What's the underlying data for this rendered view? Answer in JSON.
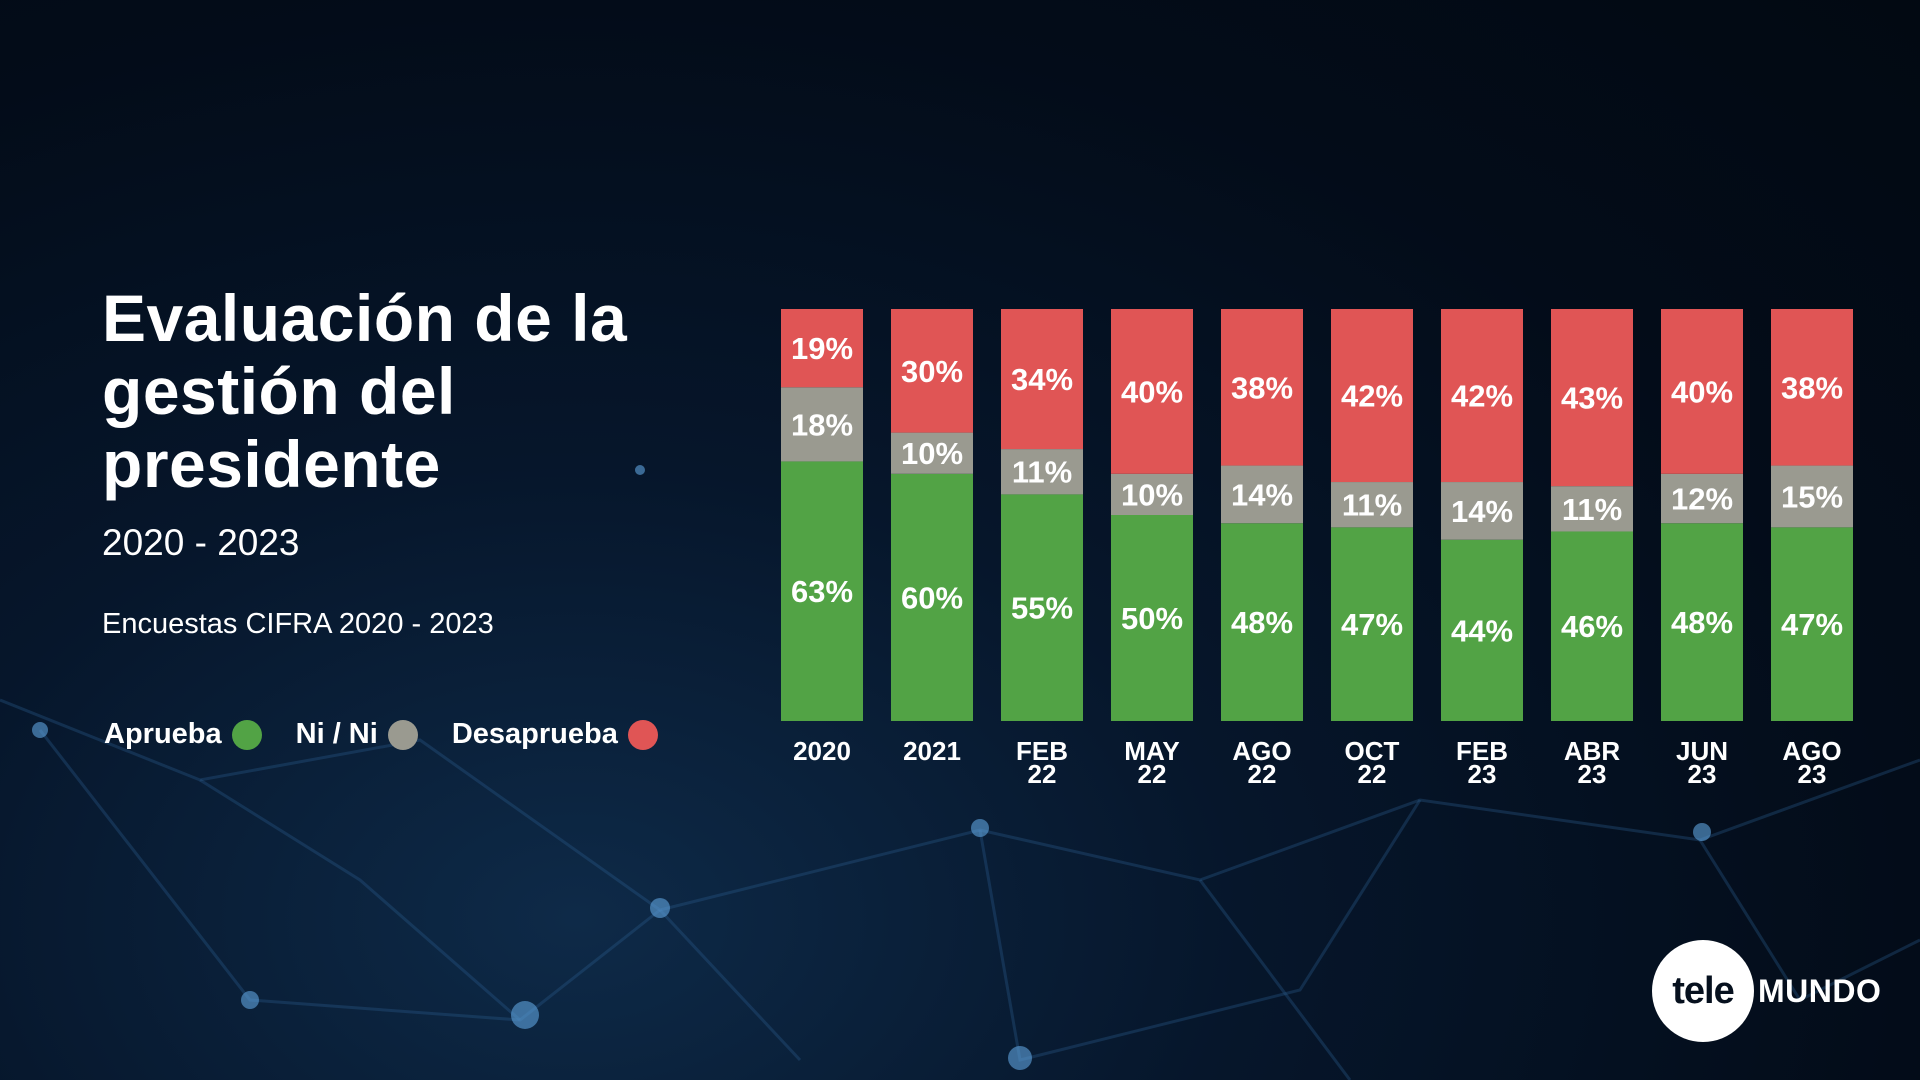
{
  "title": "Evaluación de la gestión del presidente",
  "title_lines": [
    "Evaluación de la",
    "gestión del",
    "presidente"
  ],
  "subtitle": "2020 - 2023",
  "source": "Encuestas CIFRA 2020 - 2023",
  "legend": [
    {
      "label": "Aprueba",
      "color": "#52A345"
    },
    {
      "label": "Ni / Ni",
      "color": "#9A9A90"
    },
    {
      "label": "Desaprueba",
      "color": "#E05555"
    }
  ],
  "logo": {
    "circle_text": "tele",
    "word": "MUNDO"
  },
  "chart_data": {
    "type": "bar",
    "stacked": true,
    "title": "Evaluación de la gestión del presidente",
    "xlabel": "",
    "ylabel": "",
    "ylim": [
      0,
      100
    ],
    "categories": [
      "2020",
      "2021",
      "FEB 22",
      "MAY 22",
      "AGO 22",
      "OCT 22",
      "FEB 23",
      "ABR 23",
      "JUN 23",
      "AGO 23"
    ],
    "category_lines": [
      [
        "2020"
      ],
      [
        "2021"
      ],
      [
        "FEB",
        "22"
      ],
      [
        "MAY",
        "22"
      ],
      [
        "AGO",
        "22"
      ],
      [
        "OCT",
        "22"
      ],
      [
        "FEB",
        "23"
      ],
      [
        "ABR",
        "23"
      ],
      [
        "JUN",
        "23"
      ],
      [
        "AGO",
        "23"
      ]
    ],
    "series": [
      {
        "name": "Aprueba",
        "color": "#52A345",
        "values": [
          63,
          60,
          55,
          50,
          48,
          47,
          44,
          46,
          48,
          47
        ]
      },
      {
        "name": "Ni / Ni",
        "color": "#9A9A90",
        "values": [
          18,
          10,
          11,
          10,
          14,
          11,
          14,
          11,
          12,
          15
        ]
      },
      {
        "name": "Desaprueba",
        "color": "#E05555",
        "values": [
          19,
          30,
          34,
          40,
          38,
          42,
          42,
          43,
          40,
          38
        ]
      }
    ],
    "data_label_suffix": "%",
    "grid": false,
    "legend_position": "bottom-left"
  }
}
